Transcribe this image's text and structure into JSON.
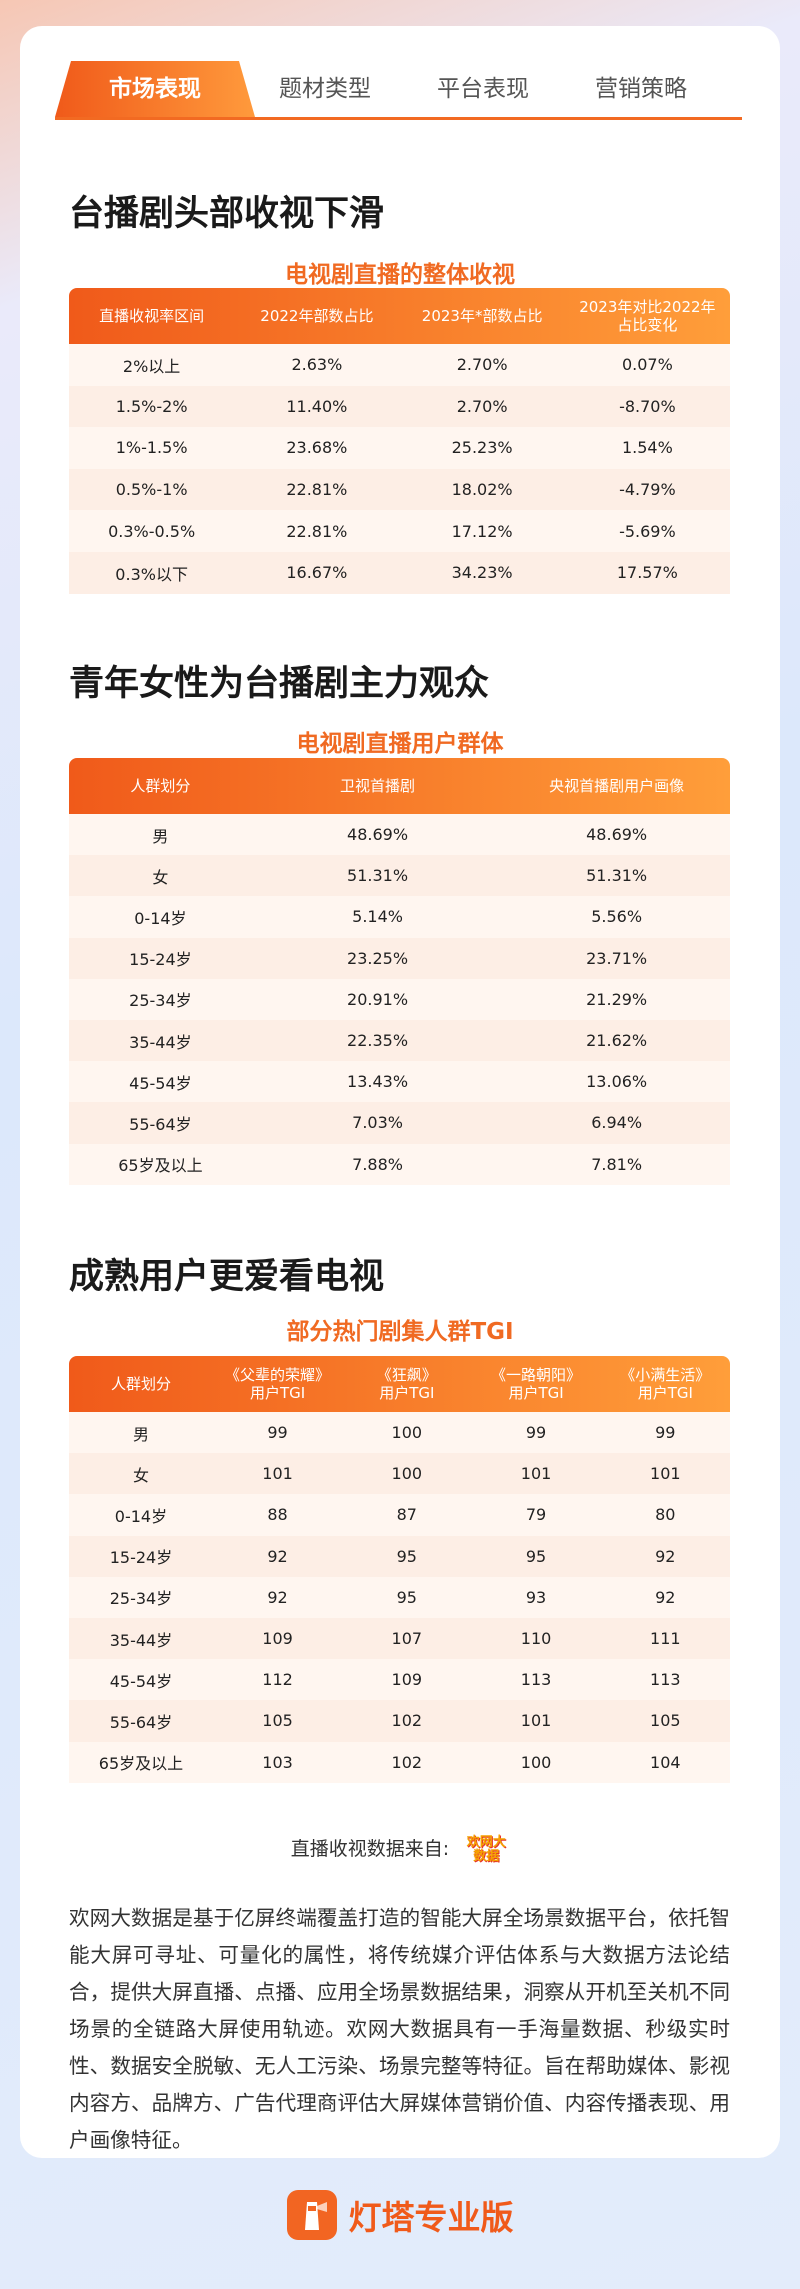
{
  "tabs": [
    "市场表现",
    "题材类型",
    "平台表现",
    "营销策略"
  ],
  "sections": [
    {
      "title": "台播剧头部收视下滑",
      "subtitle": "电视剧直播的整体收视",
      "table": {
        "header": [
          "直播收视率区间",
          "2022年部数占比",
          "2023年*部数占比",
          "2023年对比2022年\n占比变化"
        ],
        "rows": [
          [
            "2%以上",
            "2.63%",
            "2.70%",
            "0.07%"
          ],
          [
            "1.5%-2%",
            "11.40%",
            "2.70%",
            "-8.70%"
          ],
          [
            "1%-1.5%",
            "23.68%",
            "25.23%",
            "1.54%"
          ],
          [
            "0.5%-1%",
            "22.81%",
            "18.02%",
            "-4.79%"
          ],
          [
            "0.3%-0.5%",
            "22.81%",
            "17.12%",
            "-5.69%"
          ],
          [
            "0.3%以下",
            "16.67%",
            "34.23%",
            "17.57%"
          ]
        ]
      }
    },
    {
      "title": "青年女性为台播剧主力观众",
      "subtitle": "电视剧直播用户群体",
      "table": {
        "header": [
          "人群划分",
          "卫视首播剧",
          "央视首播剧用户画像"
        ],
        "rows": [
          [
            "男",
            "48.69%",
            "48.69%"
          ],
          [
            "女",
            "51.31%",
            "51.31%"
          ],
          [
            "0-14岁",
            "5.14%",
            "5.56%"
          ],
          [
            "15-24岁",
            "23.25%",
            "23.71%"
          ],
          [
            "25-34岁",
            "20.91%",
            "21.29%"
          ],
          [
            "35-44岁",
            "22.35%",
            "21.62%"
          ],
          [
            "45-54岁",
            "13.43%",
            "13.06%"
          ],
          [
            "55-64岁",
            "7.03%",
            "6.94%"
          ],
          [
            "65岁及以上",
            "7.88%",
            "7.81%"
          ]
        ]
      }
    },
    {
      "title": "成熟用户更爱看电视",
      "subtitle": "部分热门剧集人群TGI",
      "table": {
        "header": [
          "人群划分",
          "《父辈的荣耀》\n用户TGI",
          "《狂飙》\n用户TGI",
          "《一路朝阳》\n用户TGI",
          "《小满生活》\n用户TGI"
        ],
        "rows": [
          [
            "男",
            99,
            100,
            99,
            99
          ],
          [
            "女",
            101,
            100,
            101,
            101
          ],
          [
            "0-14岁",
            88,
            87,
            79,
            80
          ],
          [
            "15-24岁",
            92,
            95,
            95,
            92
          ],
          [
            "25-34岁",
            92,
            95,
            93,
            92
          ],
          [
            "35-44岁",
            109,
            107,
            110,
            111
          ],
          [
            "45-54岁",
            112,
            109,
            113,
            113
          ],
          [
            "55-64岁",
            105,
            102,
            101,
            105
          ],
          [
            "65岁及以上",
            103,
            102,
            100,
            104
          ]
        ]
      }
    }
  ],
  "source": {
    "label": "直播收视数据来自:",
    "logo": "欢网大数据"
  },
  "description": "欢网大数据是基于亿屏终端覆盖打造的智能大屏全场景数据平台，依托智能大屏可寻址、可量化的属性，将传统媒介评估体系与大数据方法论结合，提供大屏直播、点播、应用全场景数据结果，洞察从开机至关机不同场景的全链路大屏使用轨迹。欢网大数据具有一手海量数据、秒级实时性、数据安全脱敏、无人工污染、场景完整等特征。旨在帮助媒体、影视内容方、品牌方、广告代理商评估大屏媒体营销价值、内容传播表现、用户画像特征。",
  "footer": "灯塔专业版"
}
